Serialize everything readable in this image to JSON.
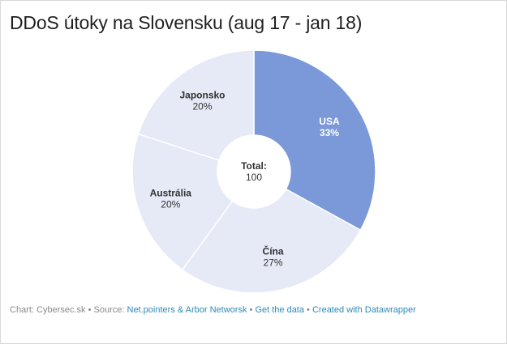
{
  "header": {
    "title": "DDoS útoky na Slovensku (aug 17 - jan 18)"
  },
  "chart_data": {
    "type": "pie",
    "donut": true,
    "slices": [
      {
        "label": "USA",
        "value": 33,
        "percent_label": "33%",
        "color": "#7b98d8",
        "text_color": "#ffffff"
      },
      {
        "label": "Čína",
        "value": 27,
        "percent_label": "27%",
        "color": "#e6e9f6",
        "text_color": "#333333"
      },
      {
        "label": "Austrália",
        "value": 20,
        "percent_label": "20%",
        "color": "#e6e9f6",
        "text_color": "#333333"
      },
      {
        "label": "Japonsko",
        "value": 20,
        "percent_label": "20%",
        "color": "#e6e9f6",
        "text_color": "#333333"
      }
    ],
    "center_label": "Total:",
    "center_value": "100",
    "legend": "none"
  },
  "footer": {
    "chart_prefix": "Chart: Cybersec.sk",
    "separator": "•",
    "source_prefix": "Source:",
    "source_link": "Net.pointers & Arbor Networsk",
    "get_data_link": "Get the data",
    "created_with_link": "Created with Datawrapper"
  }
}
